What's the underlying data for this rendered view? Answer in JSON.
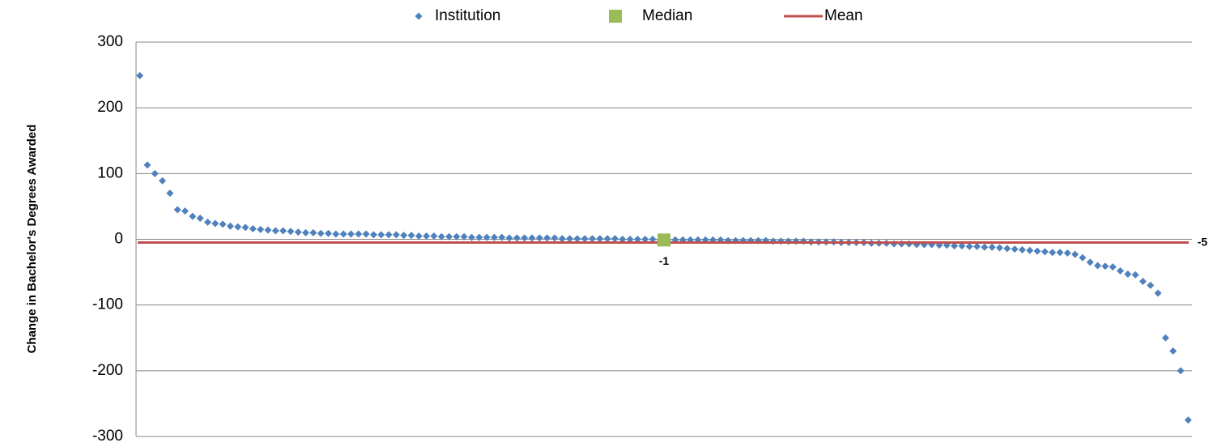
{
  "chart_data": {
    "type": "scatter",
    "y_label": "Change in Bachelor's Degrees Awarded",
    "ylim": [
      -300,
      300
    ],
    "yticks": [
      -300,
      -200,
      -100,
      0,
      100,
      200,
      300
    ],
    "grid": true,
    "legend": "top",
    "series": [
      {
        "name": "Institution",
        "color": "#4f81bd",
        "values": [
          249,
          113,
          100,
          89,
          70,
          45,
          43,
          35,
          32,
          26,
          24,
          23,
          20,
          19,
          18,
          16,
          15,
          14,
          13,
          13,
          12,
          11,
          10,
          10,
          9,
          9,
          8,
          8,
          8,
          8,
          8,
          7,
          7,
          7,
          7,
          6,
          6,
          5,
          5,
          5,
          4,
          4,
          4,
          4,
          3,
          3,
          3,
          3,
          3,
          2,
          2,
          2,
          2,
          2,
          2,
          2,
          1,
          1,
          1,
          1,
          1,
          1,
          1,
          1,
          0,
          0,
          0,
          0,
          0,
          -1,
          -1,
          -1,
          -1,
          -1,
          -1,
          -1,
          -1,
          -1,
          -2,
          -2,
          -2,
          -2,
          -2,
          -2,
          -3,
          -3,
          -3,
          -3,
          -3,
          -4,
          -4,
          -4,
          -4,
          -5,
          -5,
          -5,
          -5,
          -6,
          -6,
          -6,
          -7,
          -7,
          -7,
          -8,
          -8,
          -8,
          -9,
          -9,
          -10,
          -10,
          -11,
          -11,
          -12,
          -12,
          -13,
          -14,
          -15,
          -16,
          -17,
          -18,
          -19,
          -20,
          -20,
          -21,
          -23,
          -28,
          -35,
          -40,
          -41,
          -42,
          -48,
          -53,
          -54,
          -64,
          -70,
          -82,
          -150,
          -170,
          -200,
          -275
        ]
      }
    ],
    "median": {
      "name": "Median",
      "color": "#9bbb59",
      "value": -1
    },
    "mean": {
      "name": "Mean",
      "color": "#c0504d",
      "value": -5
    }
  }
}
